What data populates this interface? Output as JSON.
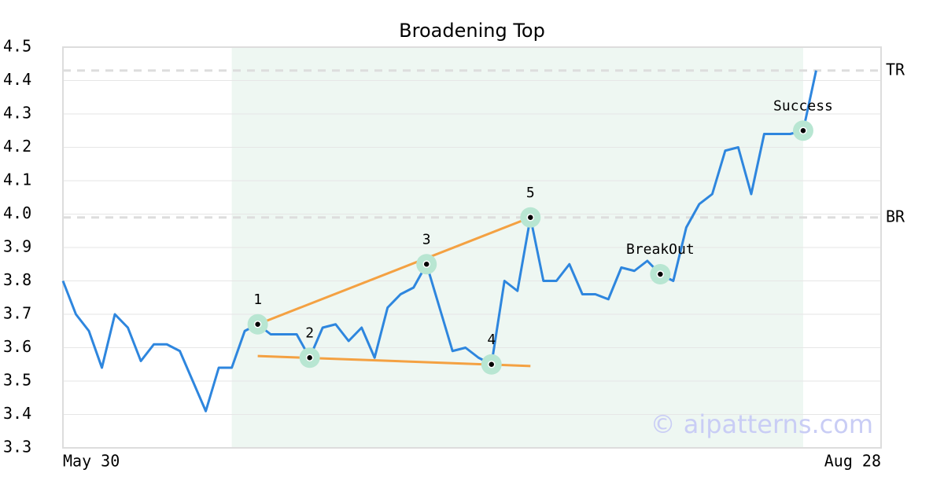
{
  "chart_data": {
    "type": "line",
    "title": "Broadening Top",
    "watermark": "© aipatterns.com",
    "xlim": [
      0,
      63
    ],
    "xticks": [
      {
        "value": 0,
        "label": "May 30"
      },
      {
        "value": 63,
        "label": "Aug 28"
      }
    ],
    "ylim": [
      3.3,
      4.5
    ],
    "yticks": [
      3.3,
      3.4,
      3.5,
      3.6,
      3.7,
      3.8,
      3.9,
      {
        "value": 4,
        "label": "4.0"
      },
      4.1,
      4.2,
      4.3,
      4.4,
      4.5
    ],
    "grid": true,
    "highlight_x": [
      13,
      57
    ],
    "x": [
      0,
      1,
      2,
      3,
      4,
      5,
      6,
      7,
      8,
      9,
      10,
      11,
      12,
      13,
      14,
      15,
      16,
      17,
      18,
      19,
      20,
      21,
      22,
      23,
      24,
      25,
      26,
      27,
      28,
      29,
      30,
      31,
      32,
      33,
      34,
      35,
      36,
      37,
      38,
      39,
      40,
      41,
      42,
      43,
      44,
      45,
      46,
      47,
      48,
      49,
      50,
      51,
      52,
      53,
      54,
      55,
      56,
      57,
      58
    ],
    "series": [
      {
        "color": "#2e86de",
        "values": [
          3.8,
          3.7,
          3.65,
          3.54,
          3.7,
          3.66,
          3.56,
          3.61,
          3.61,
          3.59,
          3.5,
          3.41,
          3.54,
          3.54,
          3.65,
          3.67,
          3.64,
          3.64,
          3.64,
          3.57,
          3.66,
          3.67,
          3.62,
          3.66,
          3.57,
          3.72,
          3.76,
          3.78,
          3.85,
          3.72,
          3.59,
          3.6,
          3.57,
          3.55,
          3.8,
          3.77,
          3.99,
          3.8,
          3.8,
          3.85,
          3.76,
          3.76,
          3.745,
          3.84,
          3.83,
          3.86,
          3.82,
          3.8,
          3.96,
          4.03,
          4.06,
          4.19,
          4.2,
          4.06,
          4.24,
          4.24,
          4.24,
          4.25,
          4.43
        ]
      }
    ],
    "trendlines": [
      {
        "color": "#f4a142",
        "x": [
          15,
          36
        ],
        "y": [
          3.67,
          3.99
        ]
      },
      {
        "color": "#f4a142",
        "x": [
          15,
          36
        ],
        "y": [
          3.575,
          3.545
        ]
      }
    ],
    "levels": [
      {
        "label": "TR",
        "value": 4.43
      },
      {
        "label": "BR",
        "value": 3.99
      }
    ],
    "points": [
      {
        "label": "1",
        "x": 15,
        "value": 3.67
      },
      {
        "label": "2",
        "x": 19,
        "value": 3.57
      },
      {
        "label": "3",
        "x": 28,
        "value": 3.85
      },
      {
        "label": "4",
        "x": 33,
        "value": 3.55
      },
      {
        "label": "5",
        "x": 36,
        "value": 3.99
      },
      {
        "label": "BreakOut",
        "x": 46,
        "value": 3.82
      },
      {
        "label": "Success",
        "x": 57,
        "value": 4.25
      }
    ]
  }
}
